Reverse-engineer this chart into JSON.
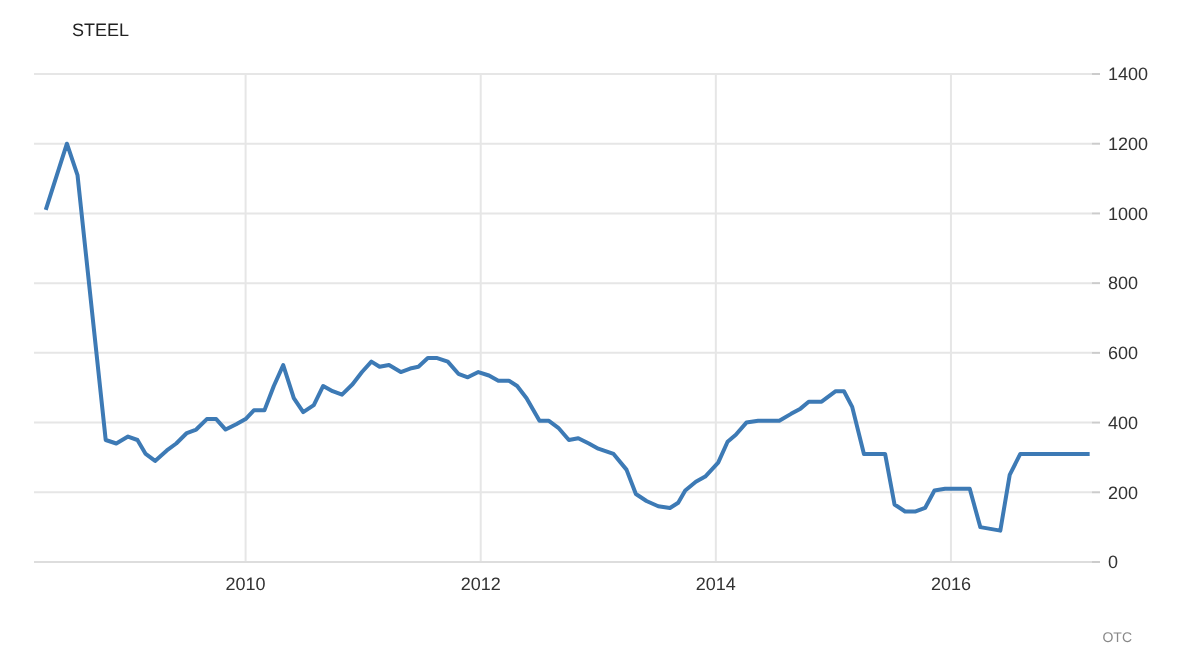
{
  "chart_data": {
    "type": "line",
    "title": "STEEL",
    "annotations": [
      "OTC"
    ],
    "x": [
      2008.3,
      2008.48,
      2008.57,
      2008.81,
      2008.9,
      2009.0,
      2009.08,
      2009.15,
      2009.23,
      2009.33,
      2009.41,
      2009.5,
      2009.58,
      2009.67,
      2009.75,
      2009.83,
      2009.92,
      2010.0,
      2010.07,
      2010.16,
      2010.24,
      2010.32,
      2010.41,
      2010.49,
      2010.58,
      2010.66,
      2010.74,
      2010.82,
      2010.91,
      2010.99,
      2011.07,
      2011.14,
      2011.22,
      2011.32,
      2011.4,
      2011.47,
      2011.55,
      2011.63,
      2011.72,
      2011.81,
      2011.89,
      2011.98,
      2012.07,
      2012.15,
      2012.24,
      2012.31,
      2012.39,
      2012.5,
      2012.58,
      2012.66,
      2012.75,
      2012.83,
      2012.92,
      2013.0,
      2013.13,
      2013.24,
      2013.32,
      2013.41,
      2013.51,
      2013.61,
      2013.68,
      2013.74,
      2013.83,
      2013.91,
      2014.02,
      2014.1,
      2014.17,
      2014.26,
      2014.36,
      2014.45,
      2014.54,
      2014.64,
      2014.72,
      2014.79,
      2014.9,
      2015.02,
      2015.09,
      2015.16,
      2015.26,
      2015.44,
      2015.52,
      2015.61,
      2015.7,
      2015.78,
      2015.86,
      2015.95,
      2016.16,
      2016.25,
      2016.42,
      2016.5,
      2016.59,
      2017.18
    ],
    "series": [
      {
        "color": "#3d7ab5",
        "values": [
          1010,
          1200,
          1110,
          350,
          340,
          360,
          350,
          310,
          290,
          320,
          340,
          370,
          380,
          410,
          410,
          380,
          395,
          410,
          435,
          435,
          505,
          565,
          470,
          430,
          450,
          505,
          490,
          480,
          510,
          545,
          575,
          560,
          565,
          545,
          555,
          560,
          585,
          585,
          575,
          540,
          530,
          545,
          535,
          520,
          520,
          505,
          470,
          405,
          405,
          385,
          350,
          355,
          340,
          325,
          310,
          265,
          195,
          175,
          160,
          155,
          170,
          205,
          230,
          245,
          285,
          345,
          365,
          400,
          405,
          405,
          405,
          425,
          440,
          460,
          460,
          490,
          490,
          445,
          310,
          310,
          165,
          145,
          145,
          155,
          205,
          210,
          210,
          100,
          90,
          250,
          310,
          310
        ]
      }
    ],
    "xlim": [
      2008.2,
      2017.2
    ],
    "xticks": [
      2010,
      2012,
      2014,
      2016
    ],
    "ylim": [
      0,
      1400
    ],
    "yticks": [
      0,
      200,
      400,
      600,
      800,
      1000,
      1200,
      1400
    ],
    "grid": true,
    "marker": "none",
    "line_style": "solid"
  }
}
